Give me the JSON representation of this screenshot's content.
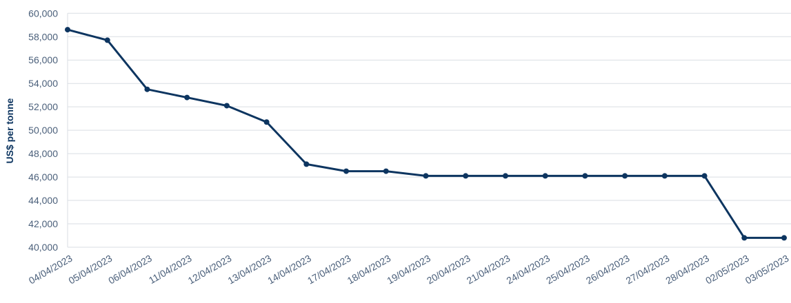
{
  "chart_data": {
    "type": "line",
    "title": "",
    "xlabel": "",
    "ylabel": "US$ per tonne",
    "ylim": [
      40000,
      60000
    ],
    "ytick_step": 2000,
    "yticks": [
      "40,000",
      "42,000",
      "44,000",
      "46,000",
      "48,000",
      "50,000",
      "52,000",
      "54,000",
      "56,000",
      "58,000",
      "60,000"
    ],
    "grid": true,
    "line_color": "#0d3560",
    "categories": [
      "04/04/2023",
      "05/04/2023",
      "06/04/2023",
      "11/04/2023",
      "12/04/2023",
      "13/04/2023",
      "14/04/2023",
      "17/04/2023",
      "18/04/2023",
      "19/04/2023",
      "20/04/2023",
      "21/04/2023",
      "24/04/2023",
      "25/04/2023",
      "26/04/2023",
      "27/04/2023",
      "28/04/2023",
      "02/05/2023",
      "03/05/2023"
    ],
    "values": [
      58600,
      57700,
      53500,
      52800,
      52100,
      50700,
      47100,
      46500,
      46500,
      46100,
      46100,
      46100,
      46100,
      46100,
      46100,
      46100,
      46100,
      40800,
      40800
    ]
  }
}
